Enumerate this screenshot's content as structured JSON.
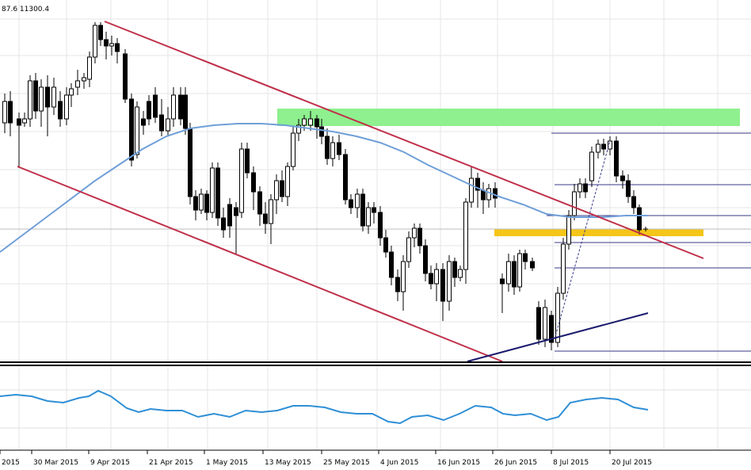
{
  "chart_data": {
    "type": "candlestick",
    "header_text": "87.6 11300.4",
    "x_tick_labels": [
      "2015",
      "30 Mar 2015",
      "9 Apr 2015",
      "21 Apr 2015",
      "1 May 2015",
      "13 May 2015",
      "25 May 2015",
      "4 Jun 2015",
      "16 Jun 2015",
      "26 Jun 2015",
      "8 Jul 2015",
      "20 Jul 2015"
    ],
    "grid": true,
    "colors": {
      "bull_body": "#ffffff",
      "bear_body": "#000000",
      "wick": "#000000",
      "moving_average": "#6f9fd8",
      "channel": "#c0304a",
      "resistance_zone": "#8ef08e",
      "support_zone": "#f5c518",
      "uptrend_line": "#1a1a6e",
      "oscillator": "#2f8fd6"
    }
  }
}
